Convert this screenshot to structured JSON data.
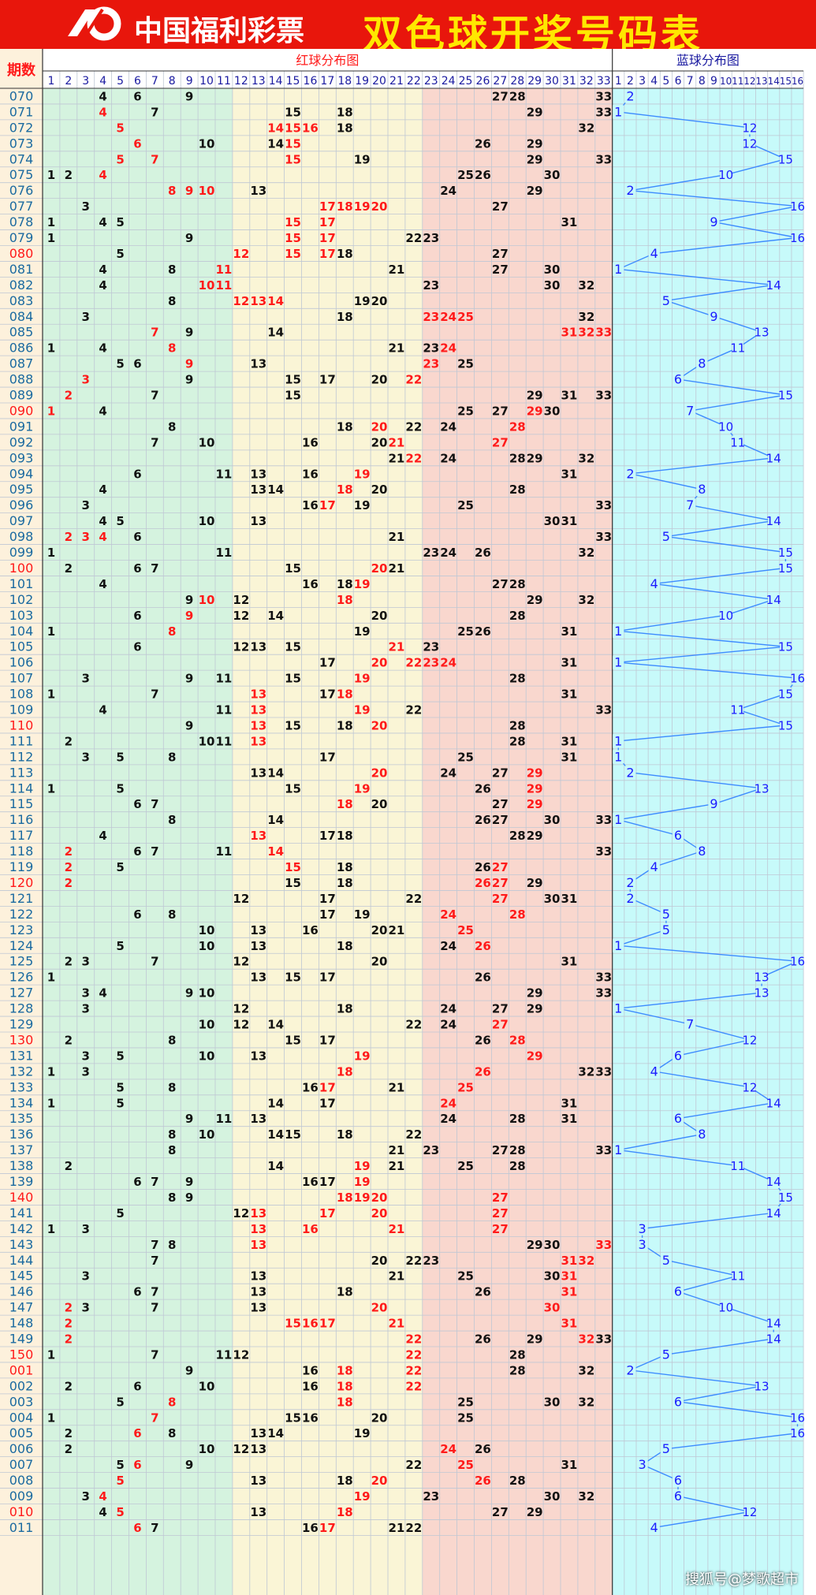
{
  "header": {
    "logo_text": "中国福利彩票",
    "title": "双色球开奖号码表"
  },
  "watermark": "搜狐号@梦歌超市",
  "chart_data": {
    "type": "table",
    "period_label": "期数",
    "red_label": "红球分布图",
    "blue_label": "蓝球分布图",
    "red_cols": 33,
    "blue_cols": 16,
    "colors": {
      "red_zone1": "#d5f3df",
      "red_zone2": "#faf5d6",
      "red_zone3": "#f9d7ce",
      "blue_zone": "#c7fafa",
      "period_zone": "#fdf1dc",
      "grid": "#bfc7d4",
      "red_number": "#ff1a1a",
      "black_number": "#111111",
      "blue_number": "#1a1aff",
      "blue_line": "#3d8bff",
      "period_text": "#1a6aa0",
      "period_red": "#ff1a1a"
    },
    "rows": [
      {
        "p": "070",
        "r": [
          4,
          6,
          9,
          27,
          28,
          33
        ],
        "h": [],
        "b": 2
      },
      {
        "p": "071",
        "r": [
          4,
          7,
          15,
          18,
          29,
          33
        ],
        "h": [
          4
        ],
        "b": 1
      },
      {
        "p": "072",
        "r": [
          5,
          14,
          15,
          16,
          18,
          32
        ],
        "h": [
          5,
          14,
          15,
          16
        ],
        "b": 12
      },
      {
        "p": "073",
        "r": [
          6,
          10,
          14,
          15,
          26,
          29
        ],
        "h": [
          6,
          15
        ],
        "b": 12
      },
      {
        "p": "074",
        "r": [
          5,
          7,
          15,
          19,
          29,
          33
        ],
        "h": [
          5,
          7,
          15
        ],
        "b": 15
      },
      {
        "p": "075",
        "r": [
          1,
          2,
          4,
          25,
          26,
          30
        ],
        "h": [
          4
        ],
        "b": 10
      },
      {
        "p": "076",
        "r": [
          8,
          9,
          10,
          13,
          24,
          29
        ],
        "h": [
          8,
          9,
          10
        ],
        "b": 2
      },
      {
        "p": "077",
        "r": [
          3,
          17,
          18,
          19,
          20,
          27
        ],
        "h": [
          17,
          18,
          19,
          20
        ],
        "b": 16
      },
      {
        "p": "078",
        "r": [
          1,
          4,
          5,
          15,
          17,
          31
        ],
        "h": [
          15,
          17
        ],
        "b": 9
      },
      {
        "p": "079",
        "r": [
          1,
          9,
          15,
          17,
          22,
          23
        ],
        "h": [
          15,
          17
        ],
        "b": 16
      },
      {
        "p": "080",
        "r": [
          5,
          12,
          15,
          17,
          18,
          27
        ],
        "h": [
          12,
          15,
          17
        ],
        "b": 4,
        "rp": true
      },
      {
        "p": "081",
        "r": [
          4,
          8,
          11,
          21,
          27,
          30
        ],
        "h": [
          11
        ],
        "b": 1
      },
      {
        "p": "082",
        "r": [
          4,
          10,
          11,
          23,
          30,
          32
        ],
        "h": [
          10,
          11
        ],
        "b": 14
      },
      {
        "p": "083",
        "r": [
          8,
          12,
          13,
          14,
          19,
          20
        ],
        "h": [
          12,
          13,
          14
        ],
        "b": 5
      },
      {
        "p": "084",
        "r": [
          3,
          18,
          23,
          24,
          25,
          32
        ],
        "h": [
          23,
          24,
          25
        ],
        "b": 9
      },
      {
        "p": "085",
        "r": [
          7,
          9,
          14,
          31,
          32,
          33
        ],
        "h": [
          7,
          31,
          32,
          33
        ],
        "b": 13
      },
      {
        "p": "086",
        "r": [
          1,
          4,
          8,
          21,
          23,
          24
        ],
        "h": [
          8,
          24
        ],
        "b": 11
      },
      {
        "p": "087",
        "r": [
          5,
          6,
          9,
          13,
          23,
          25
        ],
        "h": [
          9,
          23
        ],
        "b": 8
      },
      {
        "p": "088",
        "r": [
          3,
          9,
          15,
          17,
          20,
          22
        ],
        "h": [
          3,
          22
        ],
        "b": 6
      },
      {
        "p": "089",
        "r": [
          2,
          7,
          15,
          29,
          31,
          33
        ],
        "h": [
          2
        ],
        "b": 15
      },
      {
        "p": "090",
        "r": [
          1,
          4,
          25,
          27,
          29,
          30
        ],
        "h": [
          1,
          29
        ],
        "b": 7,
        "rp": true
      },
      {
        "p": "091",
        "r": [
          8,
          18,
          20,
          22,
          24,
          28
        ],
        "h": [
          20,
          28
        ],
        "b": 10
      },
      {
        "p": "092",
        "r": [
          7,
          10,
          16,
          20,
          21,
          27
        ],
        "h": [
          21,
          27
        ],
        "b": 11
      },
      {
        "p": "093",
        "r": [
          21,
          22,
          24,
          28,
          29,
          32
        ],
        "h": [
          22
        ],
        "b": 14
      },
      {
        "p": "094",
        "r": [
          6,
          11,
          13,
          16,
          19,
          31
        ],
        "h": [
          19
        ],
        "b": 2
      },
      {
        "p": "095",
        "r": [
          4,
          13,
          14,
          18,
          20,
          28
        ],
        "h": [
          18
        ],
        "b": 8
      },
      {
        "p": "096",
        "r": [
          3,
          16,
          17,
          19,
          25,
          33
        ],
        "h": [
          17
        ],
        "b": 7
      },
      {
        "p": "097",
        "r": [
          4,
          5,
          10,
          13,
          30,
          31
        ],
        "h": [],
        "b": 14
      },
      {
        "p": "098",
        "r": [
          2,
          3,
          4,
          6,
          21,
          33
        ],
        "h": [
          2,
          3,
          4
        ],
        "b": 5
      },
      {
        "p": "099",
        "r": [
          1,
          11,
          23,
          24,
          26,
          32
        ],
        "h": [],
        "b": 15
      },
      {
        "p": "100",
        "r": [
          2,
          6,
          7,
          15,
          20,
          21
        ],
        "h": [
          20
        ],
        "b": 15,
        "rp": true
      },
      {
        "p": "101",
        "r": [
          4,
          16,
          18,
          19,
          27,
          28
        ],
        "h": [
          19
        ],
        "b": 4
      },
      {
        "p": "102",
        "r": [
          9,
          10,
          12,
          18,
          29,
          32
        ],
        "h": [
          10,
          18
        ],
        "b": 14
      },
      {
        "p": "103",
        "r": [
          6,
          9,
          12,
          14,
          20,
          28
        ],
        "h": [
          9
        ],
        "b": 10
      },
      {
        "p": "104",
        "r": [
          1,
          8,
          19,
          25,
          26,
          31
        ],
        "h": [
          8
        ],
        "b": 1
      },
      {
        "p": "105",
        "r": [
          6,
          12,
          13,
          15,
          21,
          23
        ],
        "h": [
          21
        ],
        "b": 15
      },
      {
        "p": "106",
        "r": [
          17,
          20,
          22,
          23,
          24,
          31
        ],
        "h": [
          20,
          22,
          23,
          24
        ],
        "b": 1
      },
      {
        "p": "107",
        "r": [
          3,
          9,
          11,
          15,
          19,
          28
        ],
        "h": [
          19
        ],
        "b": 16
      },
      {
        "p": "108",
        "r": [
          1,
          7,
          13,
          17,
          18,
          31
        ],
        "h": [
          13,
          18
        ],
        "b": 15
      },
      {
        "p": "109",
        "r": [
          4,
          11,
          13,
          19,
          22,
          33
        ],
        "h": [
          13,
          19
        ],
        "b": 11
      },
      {
        "p": "110",
        "r": [
          9,
          13,
          15,
          18,
          20,
          28
        ],
        "h": [
          13,
          20
        ],
        "b": 15,
        "rp": true
      },
      {
        "p": "111",
        "r": [
          2,
          10,
          11,
          13,
          28,
          31
        ],
        "h": [
          13
        ],
        "b": 1
      },
      {
        "p": "112",
        "r": [
          3,
          5,
          8,
          17,
          25,
          31
        ],
        "h": [],
        "b": 1
      },
      {
        "p": "113",
        "r": [
          13,
          14,
          20,
          24,
          27,
          29
        ],
        "h": [
          20,
          29
        ],
        "b": 2
      },
      {
        "p": "114",
        "r": [
          1,
          5,
          15,
          19,
          26,
          29
        ],
        "h": [
          19,
          29
        ],
        "b": 13
      },
      {
        "p": "115",
        "r": [
          6,
          7,
          18,
          20,
          27,
          29
        ],
        "h": [
          18,
          29
        ],
        "b": 9
      },
      {
        "p": "116",
        "r": [
          8,
          14,
          26,
          27,
          30,
          33
        ],
        "h": [],
        "b": 1
      },
      {
        "p": "117",
        "r": [
          4,
          13,
          17,
          18,
          28,
          29
        ],
        "h": [
          13
        ],
        "b": 6
      },
      {
        "p": "118",
        "r": [
          2,
          6,
          7,
          11,
          14,
          33
        ],
        "h": [
          2,
          14
        ],
        "b": 8
      },
      {
        "p": "119",
        "r": [
          2,
          5,
          15,
          18,
          26,
          27
        ],
        "h": [
          2,
          15,
          27
        ],
        "b": 4
      },
      {
        "p": "120",
        "r": [
          2,
          15,
          18,
          26,
          27,
          29
        ],
        "h": [
          2,
          26,
          27
        ],
        "b": 2,
        "rp": true
      },
      {
        "p": "121",
        "r": [
          12,
          17,
          22,
          27,
          30,
          31
        ],
        "h": [
          27
        ],
        "b": 2
      },
      {
        "p": "122",
        "r": [
          6,
          8,
          17,
          19,
          24,
          28
        ],
        "h": [
          24,
          28
        ],
        "b": 5
      },
      {
        "p": "123",
        "r": [
          10,
          13,
          16,
          20,
          21,
          25
        ],
        "h": [
          25
        ],
        "b": 5
      },
      {
        "p": "124",
        "r": [
          5,
          10,
          13,
          18,
          24,
          26
        ],
        "h": [
          26
        ],
        "b": 1
      },
      {
        "p": "125",
        "r": [
          2,
          3,
          7,
          12,
          20,
          31
        ],
        "h": [],
        "b": 16
      },
      {
        "p": "126",
        "r": [
          1,
          13,
          15,
          17,
          26,
          33
        ],
        "h": [],
        "b": 13
      },
      {
        "p": "127",
        "r": [
          3,
          4,
          9,
          10,
          29,
          33
        ],
        "h": [],
        "b": 13
      },
      {
        "p": "128",
        "r": [
          3,
          12,
          18,
          24,
          27,
          29
        ],
        "h": [],
        "b": 1
      },
      {
        "p": "129",
        "r": [
          10,
          12,
          14,
          22,
          24,
          27
        ],
        "h": [
          27
        ],
        "b": 7
      },
      {
        "p": "130",
        "r": [
          2,
          8,
          15,
          17,
          26,
          28
        ],
        "h": [
          28
        ],
        "b": 12,
        "rp": true
      },
      {
        "p": "131",
        "r": [
          3,
          5,
          10,
          13,
          19,
          29
        ],
        "h": [
          19,
          29
        ],
        "b": 6
      },
      {
        "p": "132",
        "r": [
          1,
          3,
          18,
          26,
          32,
          33
        ],
        "h": [
          18,
          26
        ],
        "b": 4
      },
      {
        "p": "133",
        "r": [
          5,
          8,
          16,
          17,
          21,
          25
        ],
        "h": [
          17,
          25
        ],
        "b": 12
      },
      {
        "p": "134",
        "r": [
          1,
          5,
          14,
          17,
          24,
          31
        ],
        "h": [
          24
        ],
        "b": 14
      },
      {
        "p": "135",
        "r": [
          9,
          11,
          13,
          24,
          28,
          31
        ],
        "h": [],
        "b": 6
      },
      {
        "p": "136",
        "r": [
          8,
          10,
          14,
          15,
          18,
          22
        ],
        "h": [],
        "b": 8
      },
      {
        "p": "137",
        "r": [
          8,
          21,
          23,
          27,
          28,
          33
        ],
        "h": [],
        "b": 1
      },
      {
        "p": "138",
        "r": [
          2,
          14,
          19,
          21,
          25,
          28
        ],
        "h": [
          19
        ],
        "b": 11
      },
      {
        "p": "139",
        "r": [
          6,
          7,
          9,
          16,
          17,
          19
        ],
        "h": [
          19
        ],
        "b": 14
      },
      {
        "p": "140",
        "r": [
          8,
          9,
          18,
          19,
          20,
          27
        ],
        "h": [
          18,
          19,
          20,
          27
        ],
        "b": 15,
        "rp": true
      },
      {
        "p": "141",
        "r": [
          5,
          12,
          13,
          17,
          20,
          27
        ],
        "h": [
          13,
          17,
          20,
          27
        ],
        "b": 14
      },
      {
        "p": "142",
        "r": [
          1,
          3,
          13,
          16,
          21,
          27
        ],
        "h": [
          13,
          16,
          21,
          27
        ],
        "b": 3
      },
      {
        "p": "143",
        "r": [
          7,
          8,
          13,
          29,
          30,
          33
        ],
        "h": [
          13,
          33
        ],
        "b": 3
      },
      {
        "p": "144",
        "r": [
          7,
          20,
          22,
          23,
          31,
          32
        ],
        "h": [
          31,
          32
        ],
        "b": 5
      },
      {
        "p": "145",
        "r": [
          3,
          13,
          21,
          25,
          30,
          31
        ],
        "h": [
          31
        ],
        "b": 11
      },
      {
        "p": "146",
        "r": [
          6,
          7,
          13,
          18,
          26,
          31
        ],
        "h": [
          31
        ],
        "b": 6
      },
      {
        "p": "147",
        "r": [
          2,
          3,
          7,
          13,
          20,
          30
        ],
        "h": [
          2,
          20,
          30
        ],
        "b": 10
      },
      {
        "p": "148",
        "r": [
          2,
          15,
          16,
          17,
          21,
          31
        ],
        "h": [
          2,
          15,
          16,
          17,
          21,
          31
        ],
        "b": 14
      },
      {
        "p": "149",
        "r": [
          2,
          22,
          26,
          29,
          32,
          33
        ],
        "h": [
          2,
          22,
          32
        ],
        "b": 14
      },
      {
        "p": "150",
        "r": [
          1,
          7,
          11,
          12,
          22,
          28
        ],
        "h": [
          22
        ],
        "b": 5,
        "rp": true
      },
      {
        "p": "001",
        "r": [
          9,
          16,
          18,
          22,
          28,
          32
        ],
        "h": [
          18,
          22
        ],
        "b": 2,
        "rp": true
      },
      {
        "p": "002",
        "r": [
          2,
          6,
          10,
          16,
          18,
          22
        ],
        "h": [
          18,
          22
        ],
        "b": 13
      },
      {
        "p": "003",
        "r": [
          5,
          8,
          18,
          25,
          30,
          32
        ],
        "h": [
          8,
          18
        ],
        "b": 6
      },
      {
        "p": "004",
        "r": [
          1,
          7,
          15,
          16,
          20,
          25
        ],
        "h": [
          7
        ],
        "b": 16
      },
      {
        "p": "005",
        "r": [
          2,
          6,
          8,
          13,
          14,
          19
        ],
        "h": [
          6
        ],
        "b": 16
      },
      {
        "p": "006",
        "r": [
          2,
          10,
          12,
          13,
          24,
          26
        ],
        "h": [
          24
        ],
        "b": 5
      },
      {
        "p": "007",
        "r": [
          5,
          6,
          9,
          22,
          25,
          31
        ],
        "h": [
          6,
          25
        ],
        "b": 3
      },
      {
        "p": "008",
        "r": [
          5,
          13,
          18,
          20,
          26,
          28
        ],
        "h": [
          5,
          20,
          26
        ],
        "b": 6
      },
      {
        "p": "009",
        "r": [
          3,
          4,
          19,
          23,
          30,
          32
        ],
        "h": [
          4,
          19
        ],
        "b": 6
      },
      {
        "p": "010",
        "r": [
          4,
          5,
          13,
          18,
          27,
          29
        ],
        "h": [
          5,
          18
        ],
        "b": 12,
        "rp": true
      },
      {
        "p": "011",
        "r": [
          6,
          7,
          16,
          17,
          21,
          22
        ],
        "h": [
          6,
          17
        ],
        "b": 4
      }
    ]
  }
}
